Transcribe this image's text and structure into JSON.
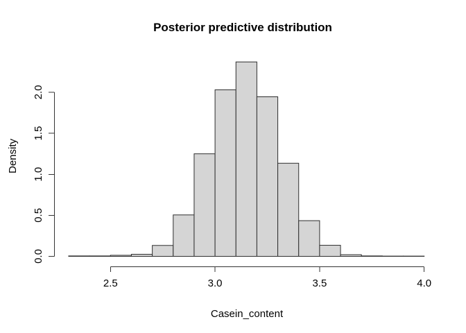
{
  "chart_data": {
    "type": "bar",
    "subtype": "histogram",
    "title": "Posterior predictive distribution",
    "xlabel": "Casein_content",
    "ylabel": "Density",
    "breaks": [
      2.3,
      2.4,
      2.5,
      2.6,
      2.7,
      2.8,
      2.9,
      3.0,
      3.1,
      3.2,
      3.3,
      3.4,
      3.5,
      3.6,
      3.7,
      3.8,
      3.9,
      4.0
    ],
    "densities": [
      0.005,
      0.005,
      0.013,
      0.025,
      0.133,
      0.505,
      1.25,
      2.03,
      2.37,
      1.945,
      1.135,
      0.435,
      0.135,
      0.02,
      0.005,
      0.003,
      0.003
    ],
    "bin_width": 0.1,
    "x_ticks": [
      2.5,
      3.0,
      3.5,
      4.0
    ],
    "x_tick_labels": [
      "2.5",
      "3.0",
      "3.5",
      "4.0"
    ],
    "y_ticks": [
      0.0,
      0.5,
      1.0,
      1.5,
      2.0
    ],
    "y_tick_labels": [
      "0.0",
      "0.5",
      "1.0",
      "1.5",
      "2.0"
    ],
    "xlim": [
      2.5,
      4.0
    ],
    "ylim": [
      0,
      2.0
    ],
    "grid": "off",
    "legend": "none",
    "bar_fill": "#d5d5d5",
    "bar_border": "#2e2e2e",
    "axis_color": "#333333",
    "background": "#ffffff"
  }
}
